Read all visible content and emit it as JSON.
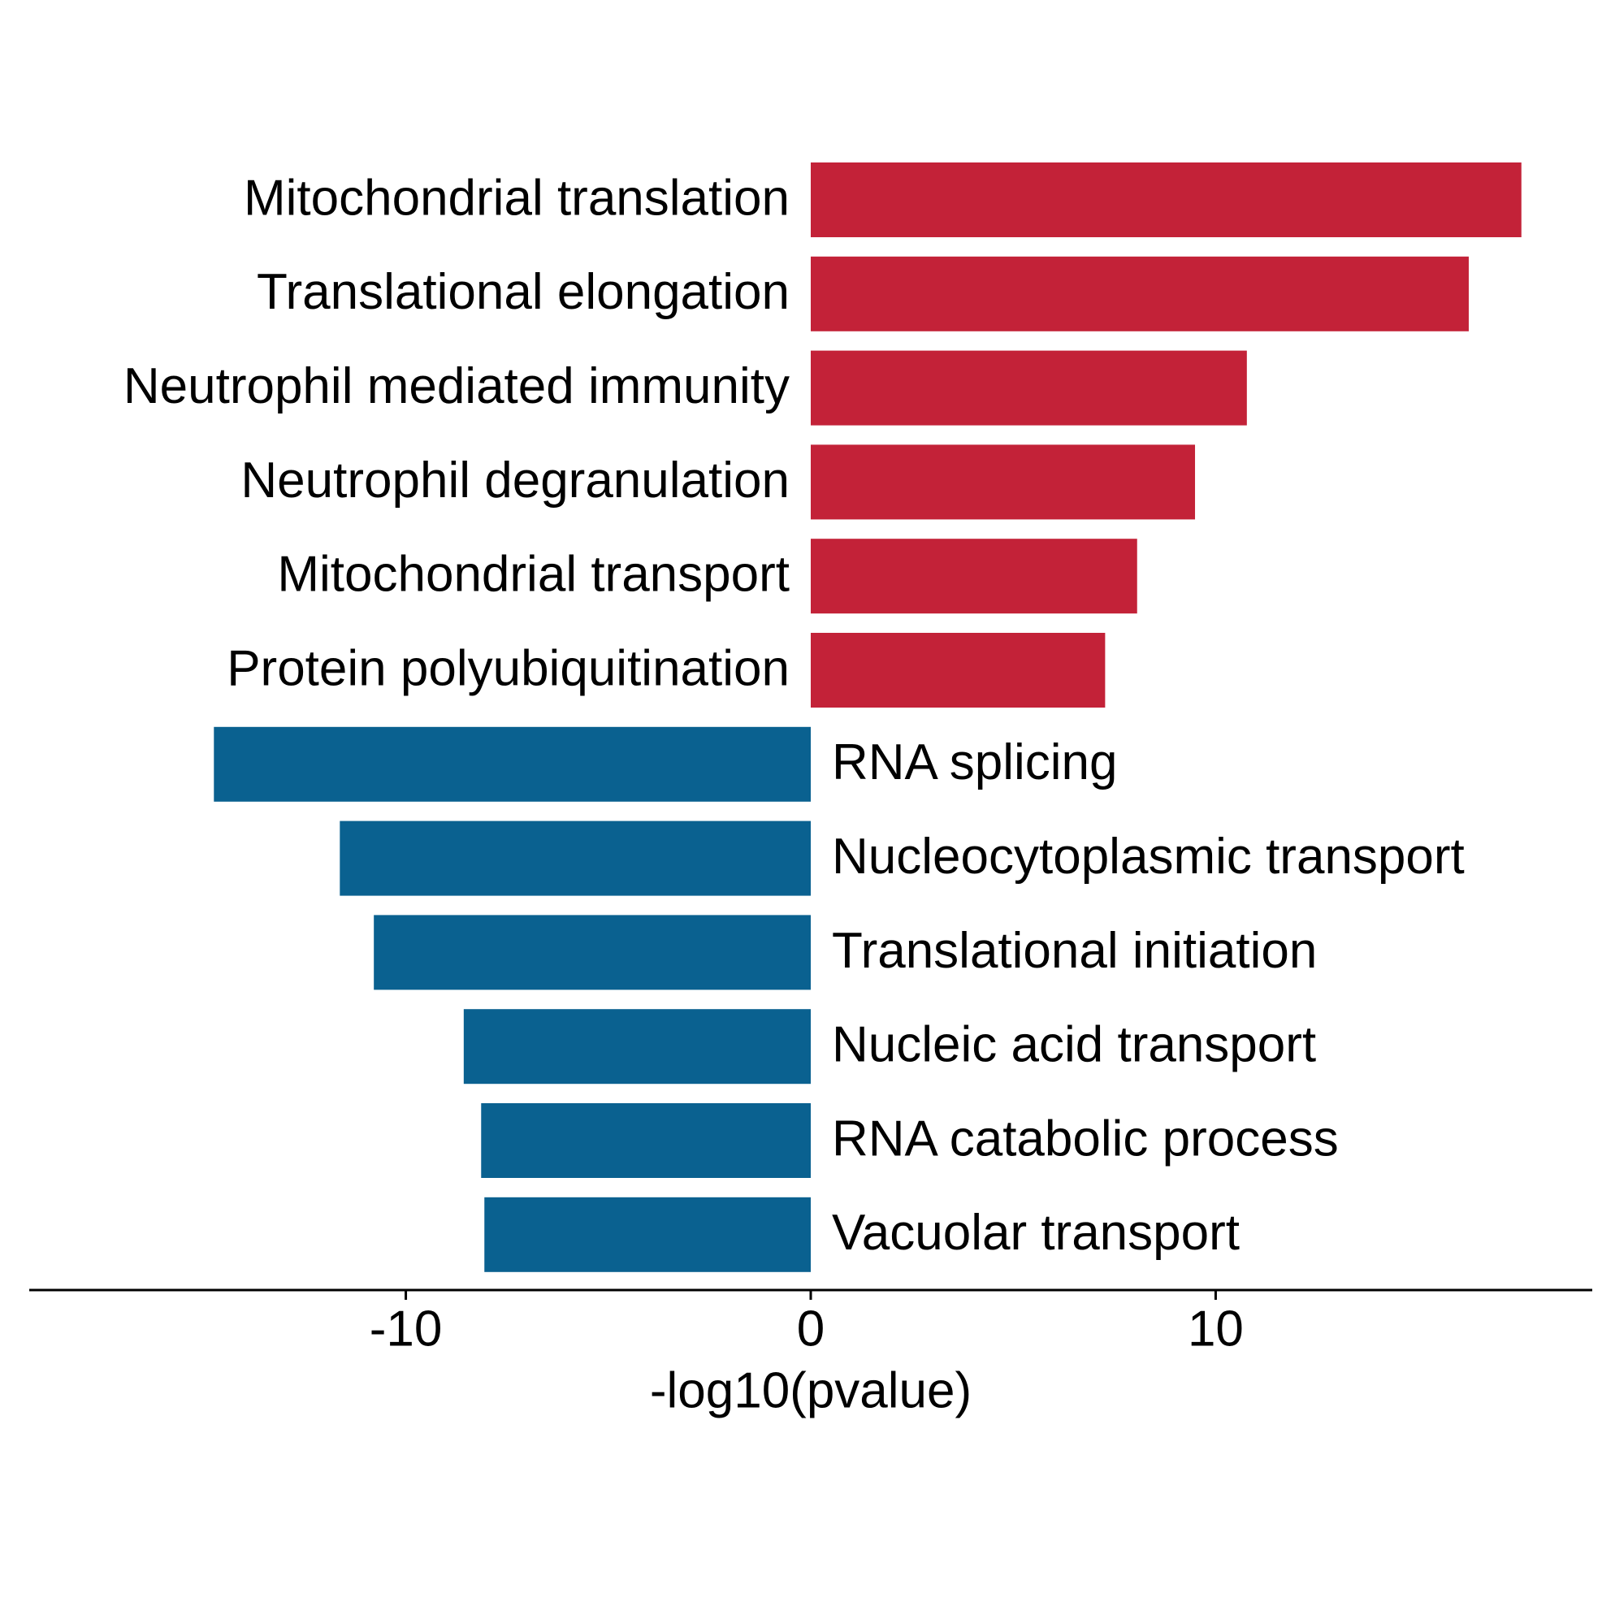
{
  "chart_data": {
    "type": "bar",
    "orientation": "horizontal",
    "categories": [
      "Mitochondrial translation",
      "Translational elongation",
      "Neutrophil mediated immunity",
      "Neutrophil degranulation",
      "Mitochondrial transport",
      "Protein polyubiquitination",
      "RNA splicing",
      "Nucleocytoplasmic transport",
      "Translational initiation",
      "Nucleic acid transport",
      "RNA catabolic process",
      "Vacuolar transport"
    ],
    "values": [
      17.55,
      16.25,
      10.77,
      9.49,
      8.06,
      7.27,
      -14.74,
      -11.63,
      -10.79,
      -8.57,
      -8.14,
      -8.06
    ],
    "colors": [
      "#c32238",
      "#c32238",
      "#c32238",
      "#c32238",
      "#c32238",
      "#c32238",
      "#0a6190",
      "#0a6190",
      "#0a6190",
      "#0a6190",
      "#0a6190",
      "#0a6190"
    ],
    "x_label": "-log10(pvalue)",
    "xlim": [
      -19.3,
      19.3
    ],
    "xticks": [
      -10,
      0,
      10
    ],
    "grid": false
  }
}
